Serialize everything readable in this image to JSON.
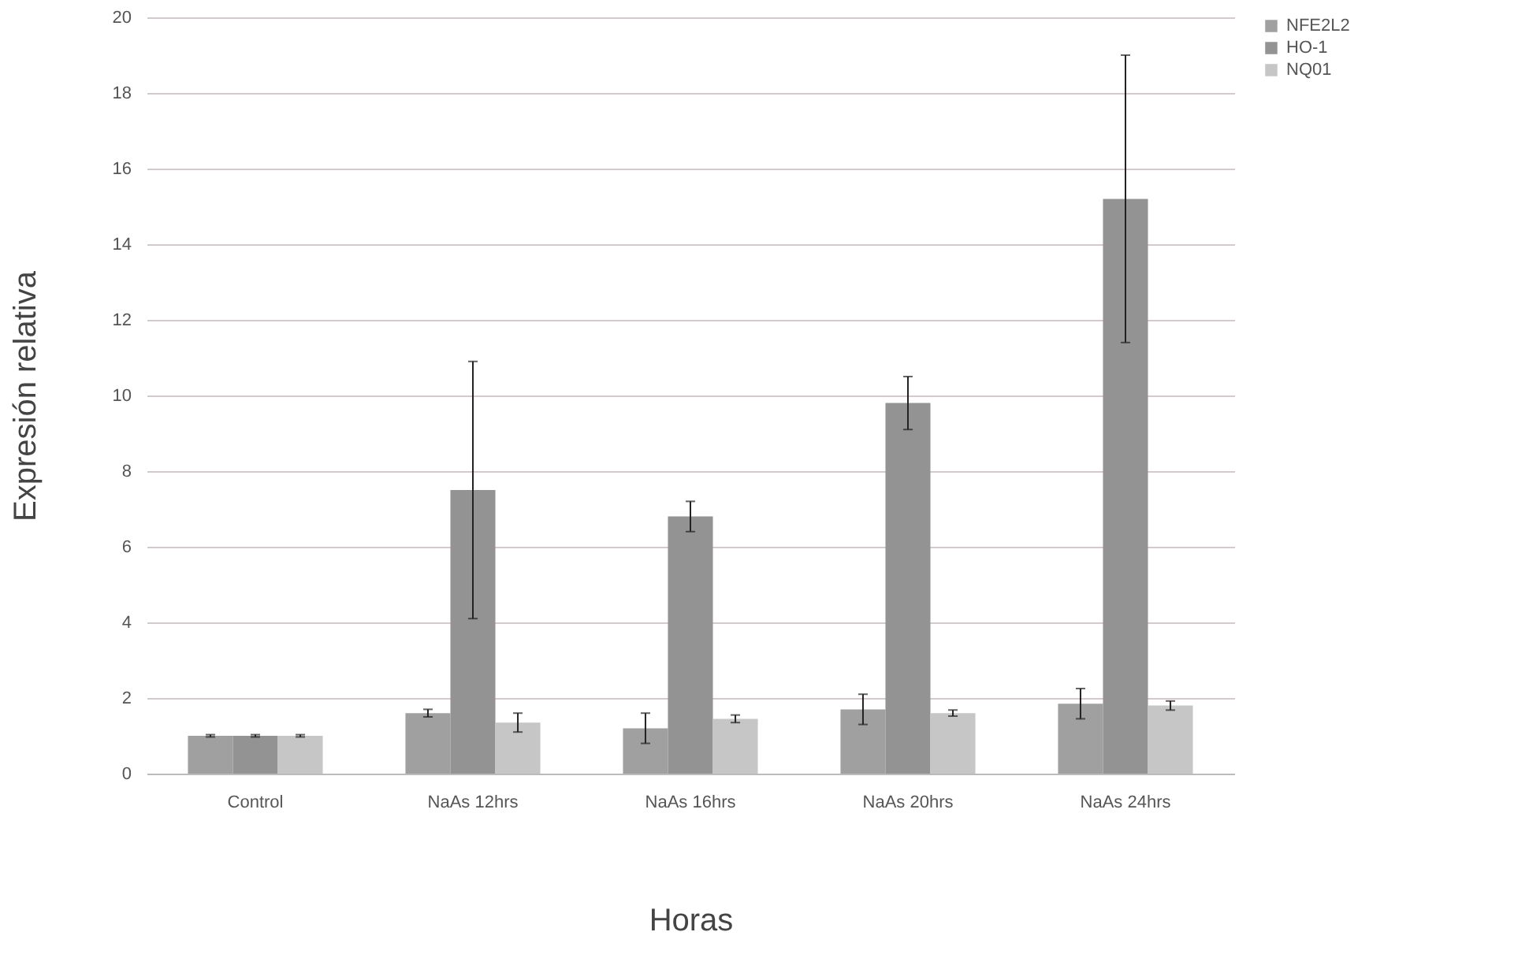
{
  "chart_data": {
    "type": "bar",
    "xlabel": "Horas",
    "ylabel": "Expresión relativa",
    "categories": [
      "Control",
      "NaAs 12hrs",
      "NaAs 16hrs",
      "NaAs 20hrs",
      "NaAs 24hrs"
    ],
    "series": [
      {
        "name": "NFE2L2",
        "color": "#a0a0a0",
        "values": [
          1.0,
          1.6,
          1.2,
          1.7,
          1.85
        ],
        "errors": [
          0.03,
          0.1,
          0.4,
          0.4,
          0.4
        ]
      },
      {
        "name": "HO-1",
        "color": "#939393",
        "values": [
          1.0,
          7.5,
          6.8,
          9.8,
          15.2
        ],
        "errors": [
          0.03,
          3.4,
          0.4,
          0.7,
          3.8
        ]
      },
      {
        "name": "NQ01",
        "color": "#c6c6c6",
        "values": [
          1.0,
          1.35,
          1.45,
          1.6,
          1.8
        ],
        "errors": [
          0.03,
          0.25,
          0.1,
          0.08,
          0.12
        ]
      }
    ],
    "ylim": [
      0,
      20
    ],
    "yticks": [
      0,
      2,
      4,
      6,
      8,
      10,
      12,
      14,
      16,
      18,
      20
    ],
    "grid": "y",
    "legend": "right"
  }
}
